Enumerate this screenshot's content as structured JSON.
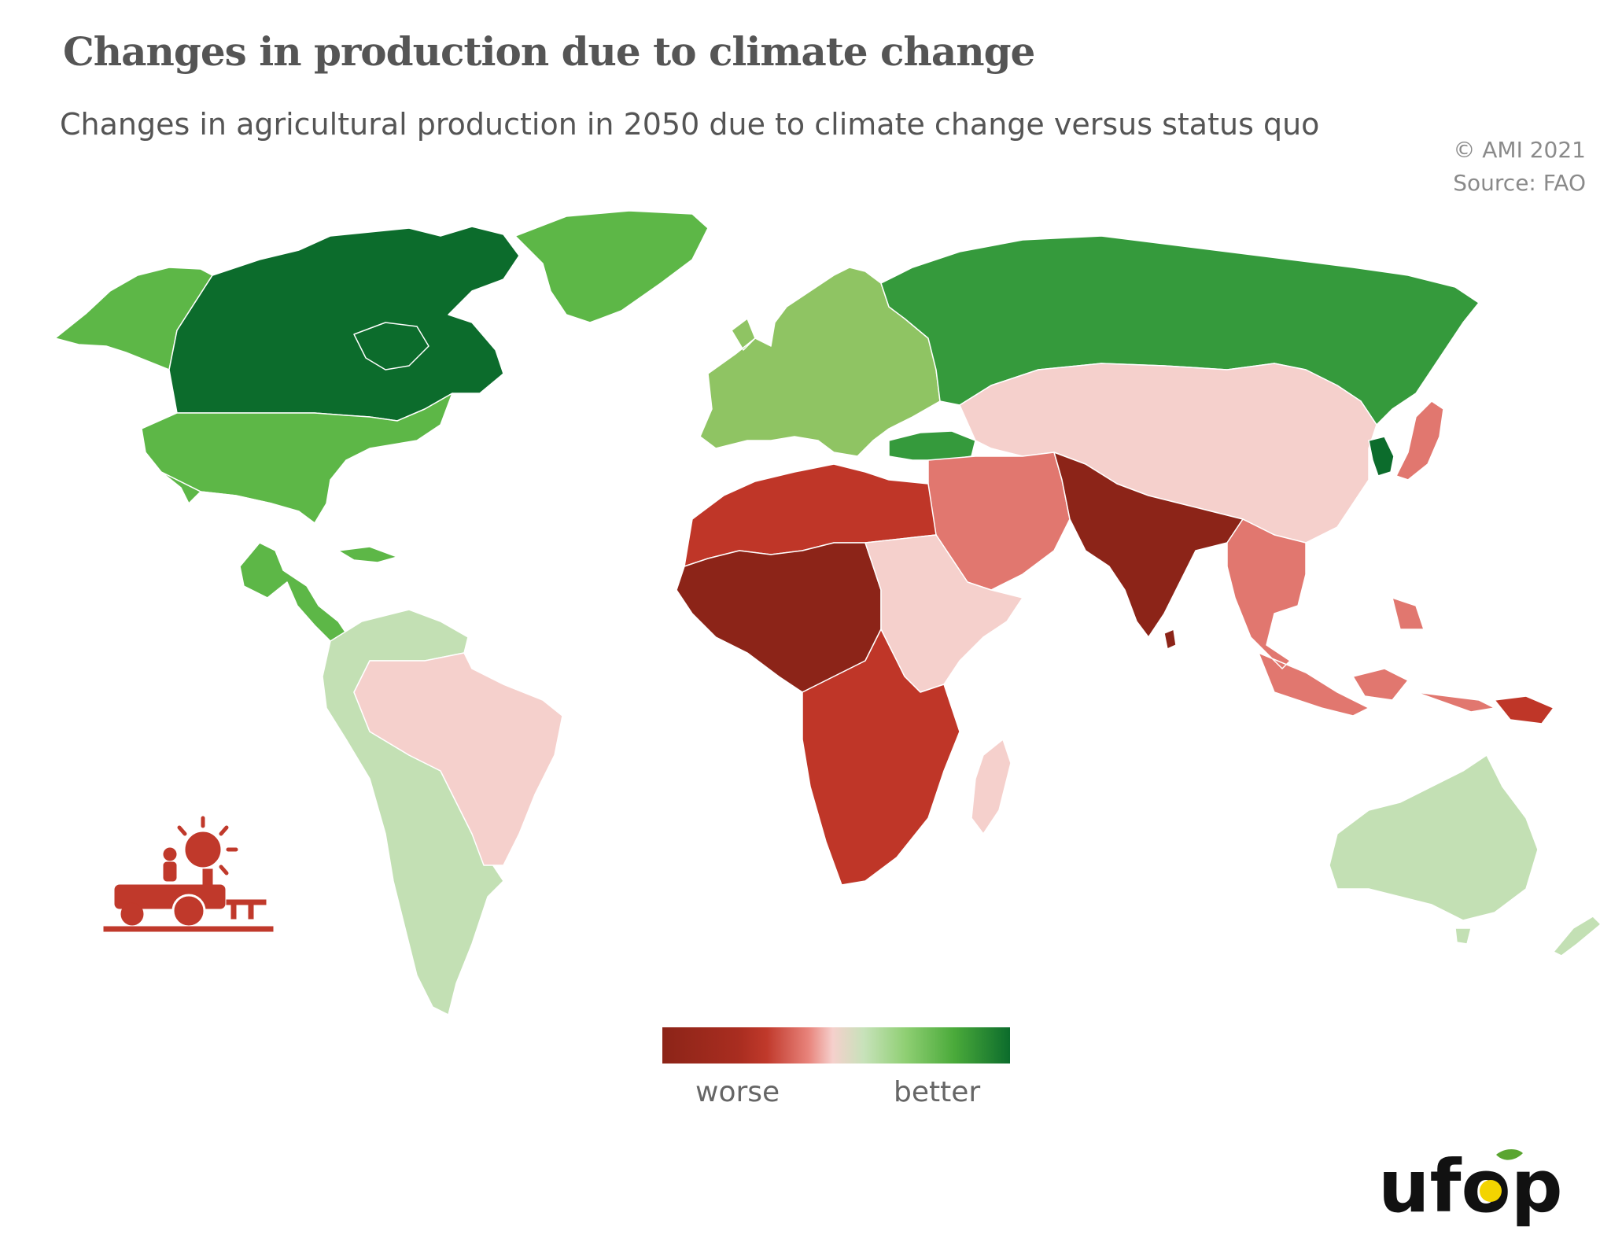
{
  "header": {
    "title": "Changes in production due to climate change",
    "subtitle": "Changes in agricultural production in 2050 due to climate change versus status quo"
  },
  "credit": {
    "copyright": "© AMI 2021",
    "source": "Source: FAO"
  },
  "legend": {
    "low_label": "worse",
    "high_label": "better"
  },
  "colors": {
    "much_better": "#0c6c2c",
    "better": "#359a3c",
    "slightly_better": "#5db747",
    "mild_better": "#8fc463",
    "marginal_better": "#c3e0b4",
    "slightly_worse": "#f5d0cc",
    "worse": "#e1776f",
    "much_worse": "#bf3628",
    "severely_worse": "#8c2418"
  },
  "regions": [
    {
      "name": "Canada",
      "level": "much_better"
    },
    {
      "name": "Alaska",
      "level": "slightly_better"
    },
    {
      "name": "Greenland",
      "level": "slightly_better"
    },
    {
      "name": "United States",
      "level": "slightly_better"
    },
    {
      "name": "Mexico and Central America",
      "level": "slightly_better"
    },
    {
      "name": "South America (west and south)",
      "level": "marginal_better"
    },
    {
      "name": "Brazil",
      "level": "slightly_worse"
    },
    {
      "name": "Europe",
      "level": "mild_better"
    },
    {
      "name": "Russia",
      "level": "better"
    },
    {
      "name": "Turkey",
      "level": "better"
    },
    {
      "name": "Korea",
      "level": "much_better"
    },
    {
      "name": "China and Central Asia",
      "level": "slightly_worse"
    },
    {
      "name": "Japan",
      "level": "worse"
    },
    {
      "name": "Middle East",
      "level": "worse"
    },
    {
      "name": "India and Pakistan",
      "level": "severely_worse"
    },
    {
      "name": "Southeast Asia",
      "level": "worse"
    },
    {
      "name": "Papua New Guinea",
      "level": "much_worse"
    },
    {
      "name": "North Africa",
      "level": "much_worse"
    },
    {
      "name": "West and Central Africa",
      "level": "severely_worse"
    },
    {
      "name": "East Africa",
      "level": "slightly_worse"
    },
    {
      "name": "Southern Africa",
      "level": "much_worse"
    },
    {
      "name": "Madagascar",
      "level": "slightly_worse"
    },
    {
      "name": "Australia",
      "level": "marginal_better"
    },
    {
      "name": "New Zealand",
      "level": "marginal_better"
    }
  ],
  "logo": {
    "text": "ufop"
  },
  "icons": [
    "farmer-tractor-sun-icon",
    "ufop-logo"
  ]
}
